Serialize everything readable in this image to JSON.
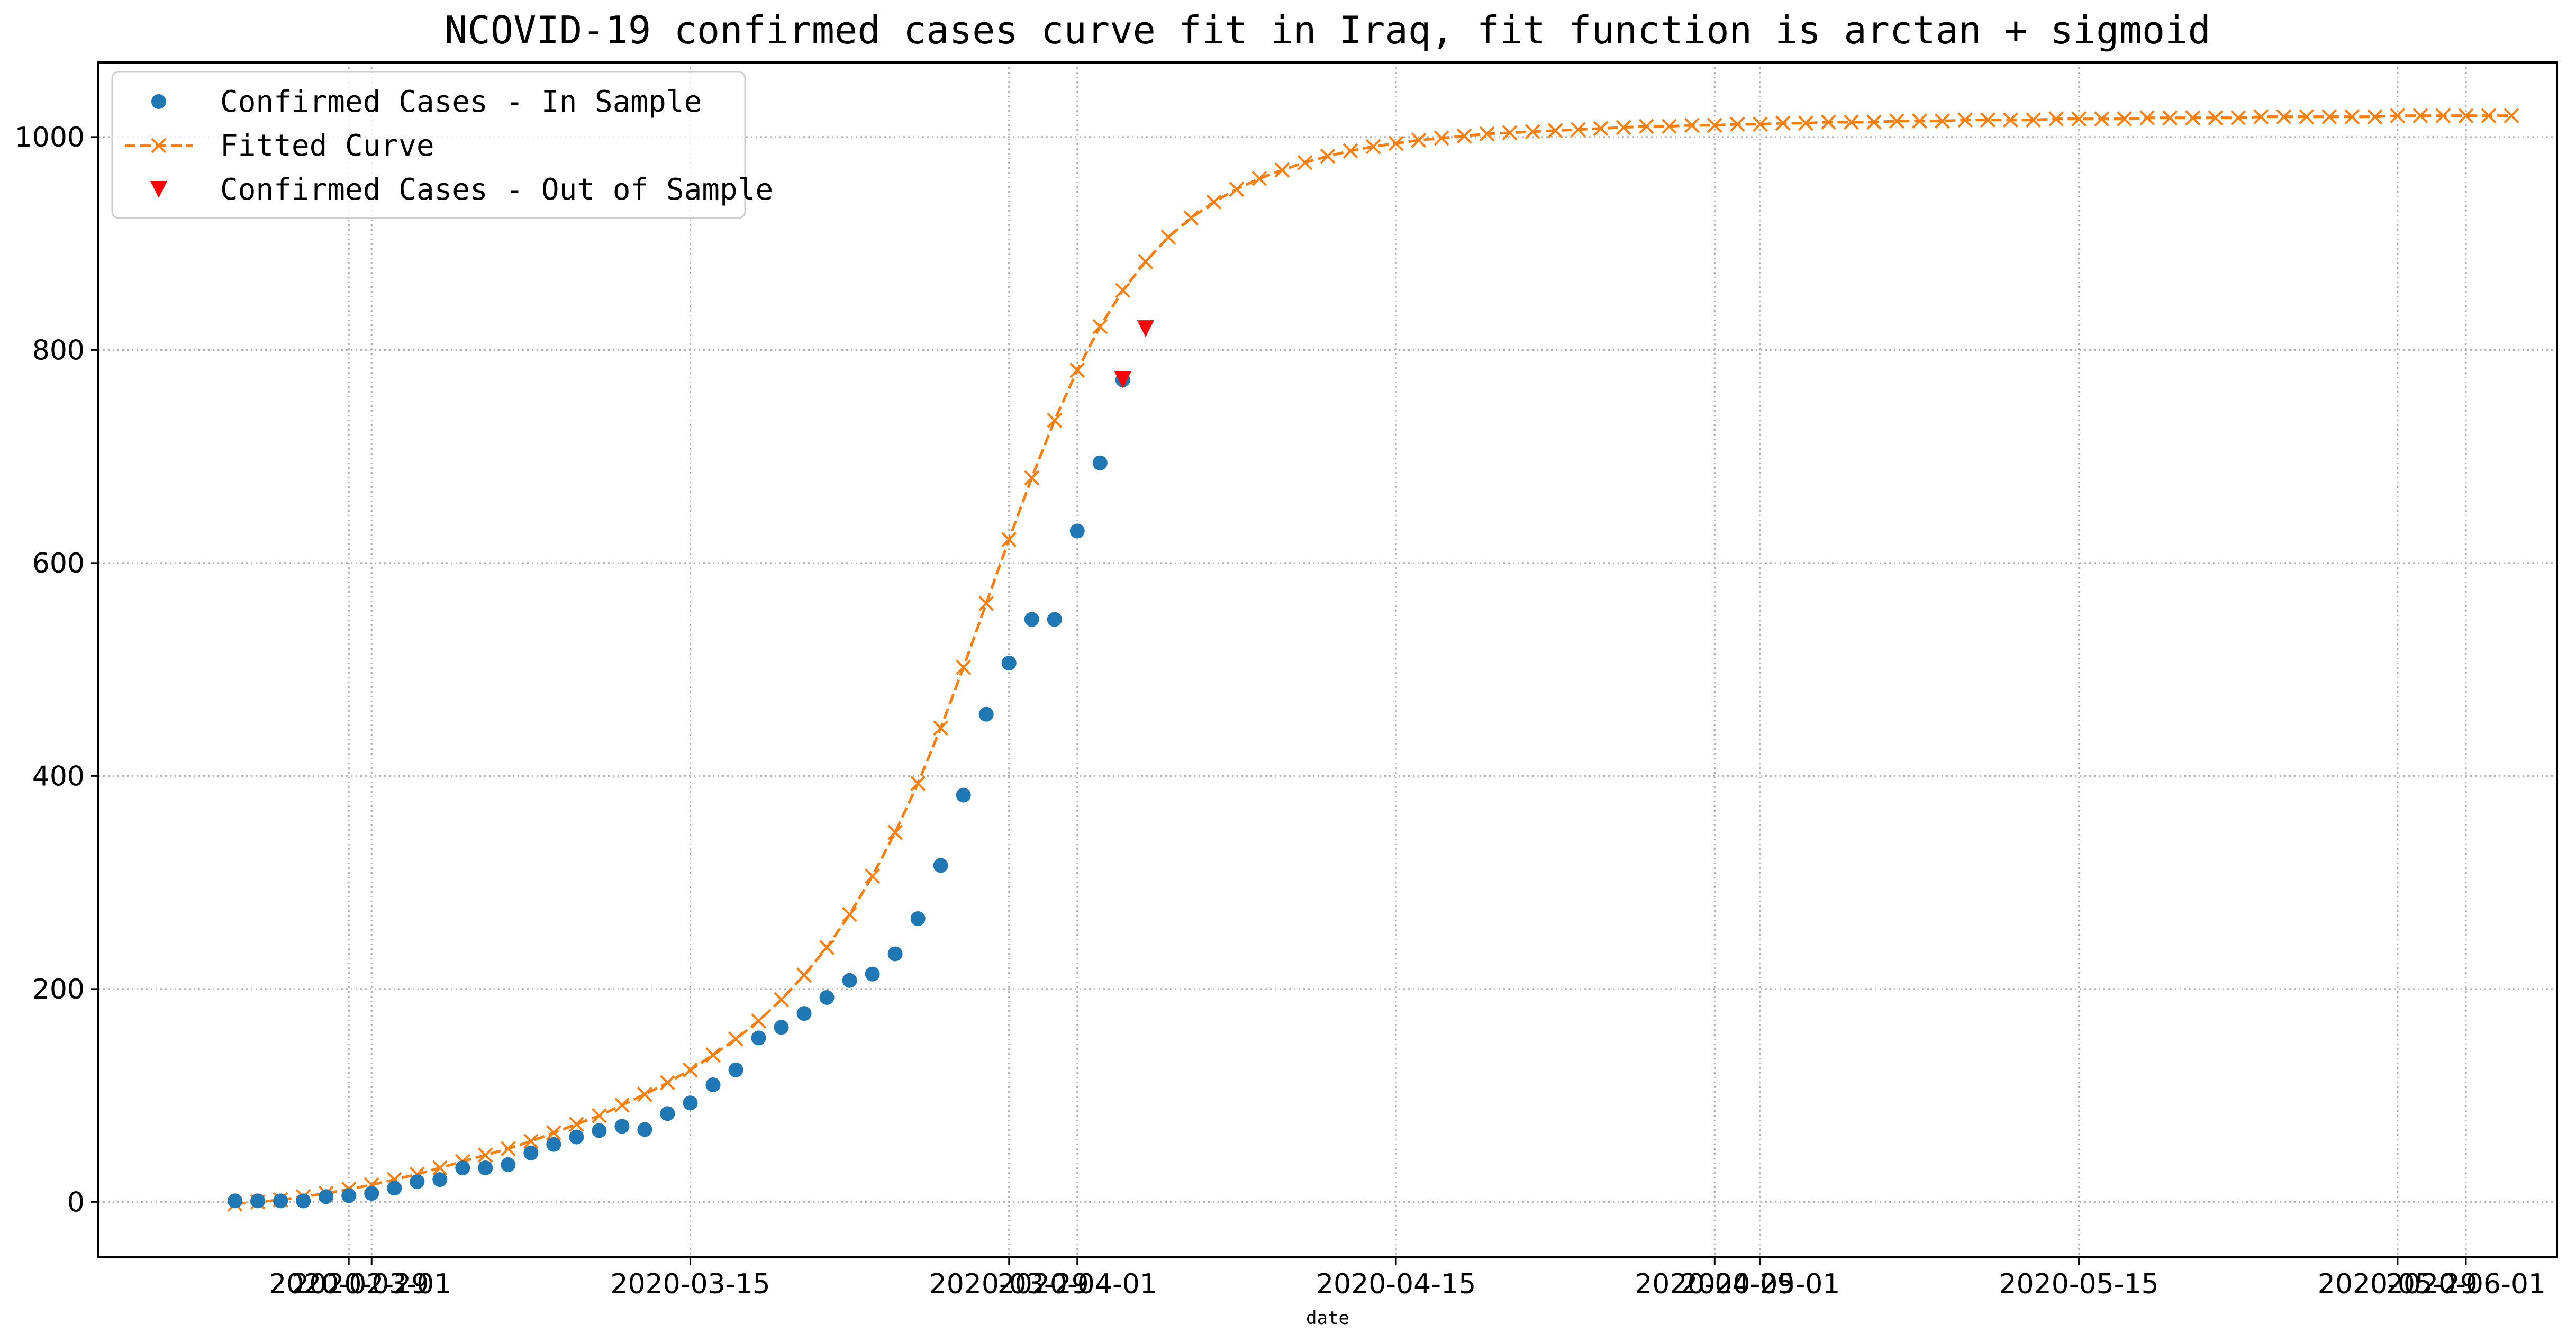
{
  "chart_data": {
    "type": "line",
    "title": "NCOVID-19 confirmed cases curve fit in Iraq, fit function is arctan + sigmoid",
    "xlabel": "date",
    "ylabel": "",
    "x_range": [
      "2020-02-18",
      "2020-06-05"
    ],
    "ylim": [
      -52,
      1070
    ],
    "grid": true,
    "legend_position": "upper-left",
    "x_ticks": [
      "2020-02-29",
      "2020-03-01",
      "2020-03-15",
      "2020-03-29",
      "2020-04-01",
      "2020-04-15",
      "2020-04-29",
      "2020-05-01",
      "2020-05-15",
      "2020-05-29",
      "2020-06-01"
    ],
    "y_ticks": [
      0,
      200,
      400,
      600,
      800,
      1000
    ],
    "colors": {
      "in_sample": "#1f77b4",
      "fitted": "#ff7f0e",
      "out_of_sample": "#ff0000",
      "grid": "#b0b0b0"
    },
    "series": [
      {
        "name": "Confirmed Cases - In Sample",
        "marker": "circle",
        "x_start": "2020-02-24",
        "values": [
          1,
          1,
          1,
          1,
          5,
          6,
          8,
          13,
          19,
          21,
          32,
          32,
          35,
          46,
          54,
          61,
          67,
          71,
          68,
          83,
          93,
          110,
          124,
          154,
          164,
          177,
          192,
          208,
          214,
          233,
          266,
          316,
          382,
          458,
          506,
          547,
          547,
          630,
          694,
          772
        ]
      },
      {
        "name": "Fitted Curve",
        "marker": "x",
        "line": "dashed",
        "x_start": "2020-02-24",
        "values": [
          -2,
          0,
          2,
          5,
          8,
          12,
          16,
          21,
          26,
          32,
          38,
          44,
          50,
          57,
          65,
          73,
          81,
          91,
          101,
          112,
          124,
          138,
          153,
          170,
          190,
          213,
          239,
          270,
          306,
          347,
          393,
          445,
          502,
          562,
          622,
          680,
          734,
          781,
          822,
          856,
          883,
          906,
          924,
          939,
          951,
          961,
          969,
          976,
          982,
          987,
          991,
          994,
          997,
          999,
          1001,
          1003,
          1004,
          1005,
          1006,
          1007,
          1008,
          1009,
          1010,
          1010,
          1011,
          1011,
          1012,
          1012,
          1013,
          1013,
          1014,
          1014,
          1014,
          1015,
          1015,
          1015,
          1016,
          1016,
          1016,
          1016,
          1017,
          1017,
          1017,
          1017,
          1018,
          1018,
          1018,
          1018,
          1018,
          1019,
          1019,
          1019,
          1019,
          1019,
          1019,
          1020,
          1020,
          1020,
          1020,
          1020,
          1020
        ]
      },
      {
        "name": "Confirmed Cases - Out of Sample",
        "marker": "triangle-down",
        "x_start": "2020-04-03",
        "values": [
          772,
          820
        ]
      }
    ]
  }
}
